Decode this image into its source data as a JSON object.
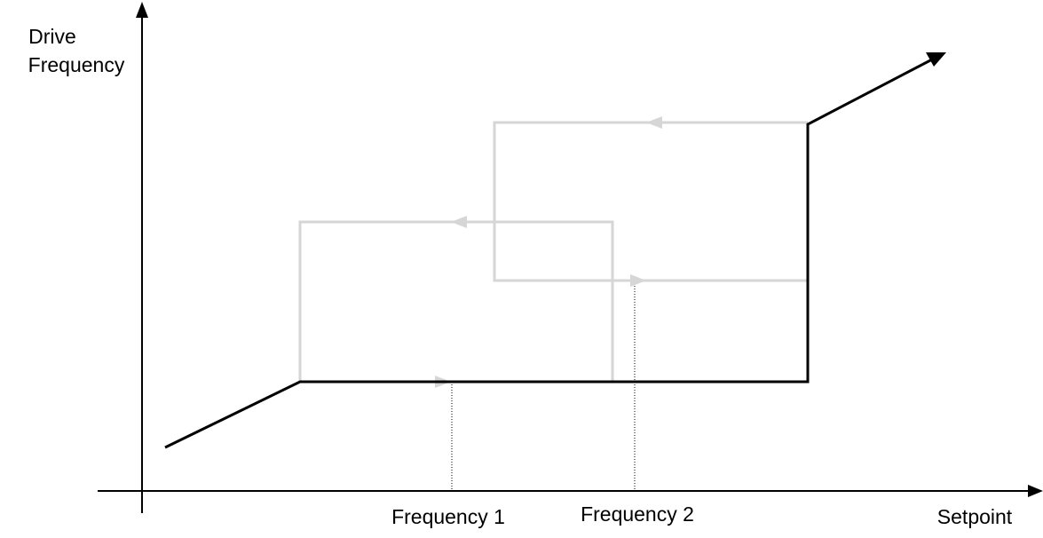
{
  "axes": {
    "y_label_line1": "Drive",
    "y_label_line2": "Frequency",
    "x_label": "Setpoint"
  },
  "markers": {
    "frequency_1": "Frequency 1",
    "frequency_2": "Frequency 2"
  },
  "colors": {
    "active_path": "#000000",
    "hysteresis_loops": "#d6d6d6",
    "axes": "#000000"
  }
}
